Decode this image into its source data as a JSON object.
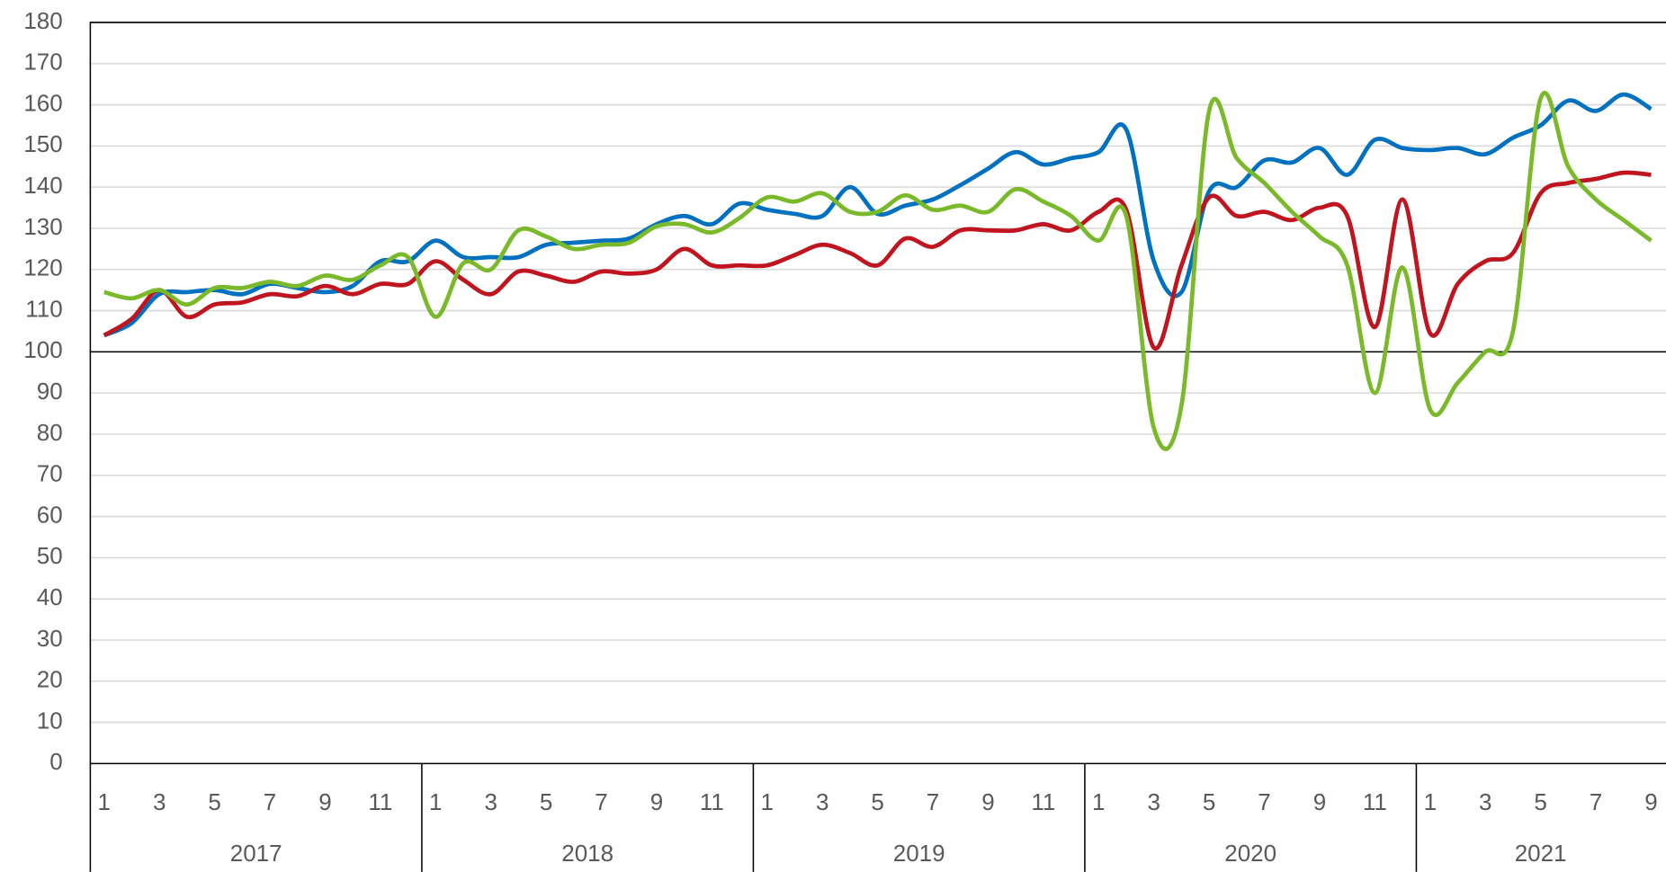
{
  "chart_data": {
    "type": "line",
    "categories": [
      "1",
      null,
      "3",
      null,
      "5",
      null,
      "7",
      null,
      "9",
      null,
      "11",
      null,
      "1",
      null,
      "3",
      null,
      "5",
      null,
      "7",
      null,
      "9",
      null,
      "11",
      null,
      "1",
      null,
      "3",
      null,
      "5",
      null,
      "7",
      null,
      "9",
      null,
      "11",
      null,
      "1",
      null,
      "3",
      null,
      "5",
      null,
      "7",
      null,
      "9",
      null,
      "11",
      null,
      "1",
      null,
      "3",
      null,
      "5",
      null,
      "7",
      null,
      "9"
    ],
    "years": [
      "2017",
      "2018",
      "2019",
      "2020",
      "2021"
    ],
    "series": [
      {
        "color": "#0070c0",
        "values": [
          104,
          107,
          114,
          114.5,
          115,
          114,
          116.5,
          115.5,
          114.5,
          116,
          122,
          122,
          127,
          123,
          123,
          123,
          126,
          126.5,
          127,
          127.5,
          131,
          133,
          131,
          136,
          134.5,
          133.5,
          133,
          140,
          133.5,
          135.5,
          137,
          140.5,
          144.5,
          148.5,
          145.5,
          147,
          148.5,
          154,
          122,
          114.5,
          139,
          140,
          146.5,
          146,
          149.5,
          143,
          151.5,
          149.5,
          149,
          149.5,
          148,
          152,
          155,
          161,
          158.5,
          162.5,
          159
        ]
      },
      {
        "color": "#c0151e",
        "values": [
          104,
          108,
          115,
          108.5,
          111.5,
          112,
          114,
          113.5,
          116,
          114,
          116.5,
          116.5,
          122,
          117.5,
          114,
          119.5,
          118.5,
          117,
          119.5,
          119,
          120,
          125,
          121,
          121,
          121,
          123.5,
          126,
          124,
          121,
          127.5,
          125.5,
          129.5,
          129.5,
          129.5,
          131,
          129.5,
          134,
          134.5,
          101,
          121,
          137.5,
          133,
          134,
          132,
          135,
          133,
          106,
          137,
          104.5,
          116.5,
          122,
          124,
          138.5,
          141,
          142,
          143.5,
          143
        ]
      },
      {
        "color": "#7ab929",
        "values": [
          114.5,
          113,
          115,
          111.5,
          115.5,
          115.5,
          117,
          116,
          118.5,
          117.5,
          121,
          123,
          108.5,
          121.5,
          120,
          129.5,
          128,
          125,
          126,
          126.5,
          130.5,
          131,
          129,
          132.5,
          137.5,
          136.5,
          138.5,
          134,
          134,
          138,
          134.5,
          135.5,
          134,
          139.5,
          136.5,
          133,
          127,
          133,
          81.5,
          87,
          158.5,
          147,
          141,
          134,
          128,
          121,
          90,
          120.5,
          86,
          92.5,
          100,
          105,
          161.5,
          145,
          137,
          132,
          127
        ]
      }
    ],
    "ylim": [
      0,
      180
    ],
    "yticks": [
      0,
      10,
      20,
      30,
      40,
      50,
      60,
      70,
      80,
      90,
      100,
      110,
      120,
      130,
      140,
      150,
      160,
      170,
      180
    ],
    "grid": true,
    "reference_line": 100
  }
}
